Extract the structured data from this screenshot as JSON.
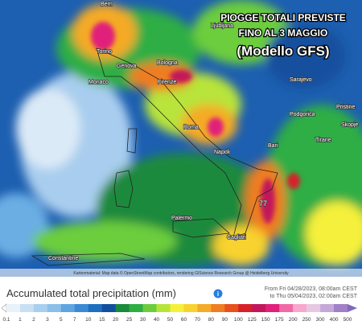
{
  "overlay": {
    "lines": [
      "PIOGGE TOTALI PREVISTE",
      "FINO AL 3 MAGGIO",
      "(Modello GFS)"
    ]
  },
  "places": [
    "Bern",
    "Ljubljana",
    "Torino",
    "Genova",
    "Monaco",
    "Bologna",
    "Firenze",
    "Sarajevo",
    "Podgorica",
    "Pristine",
    "Skopje",
    "Tirane",
    "Roma",
    "Napoli",
    "Bari",
    "Palermo",
    "Cagliari",
    "Constantine"
  ],
  "annotation": "77",
  "attribution": "Kartenmaterial: Map data © OpenStreetMap contributors, rendering GIScience Research Group @ Heidelberg University",
  "legend": {
    "title": "Accumulated total precipitation (mm)",
    "period": [
      "From Fri 04/28/2023, 08:00am CEST",
      "to Thu 05/04/2023, 02:00am CEST"
    ],
    "ticks": [
      0.1,
      1,
      2,
      3,
      5,
      7,
      10,
      15,
      20,
      25,
      30,
      40,
      50,
      60,
      70,
      80,
      90,
      100,
      125,
      150,
      175,
      200,
      250,
      300,
      400,
      500
    ],
    "colors": [
      "#e8f2fa",
      "#c8e0f2",
      "#a9cfee",
      "#8bbfe8",
      "#5fa5e0",
      "#3c8ad5",
      "#1f6fc0",
      "#12509e",
      "#1a8a3c",
      "#2fae44",
      "#6ccd3c",
      "#b8e43a",
      "#f5f03a",
      "#f8d22e",
      "#f5aa28",
      "#ef7d22",
      "#e8501e",
      "#d8202a",
      "#c2185b",
      "#e0207a",
      "#f06aa6",
      "#f7a8cc",
      "#e6c8e2",
      "#c6a8d8",
      "#a080c8",
      "#806abc"
    ]
  }
}
